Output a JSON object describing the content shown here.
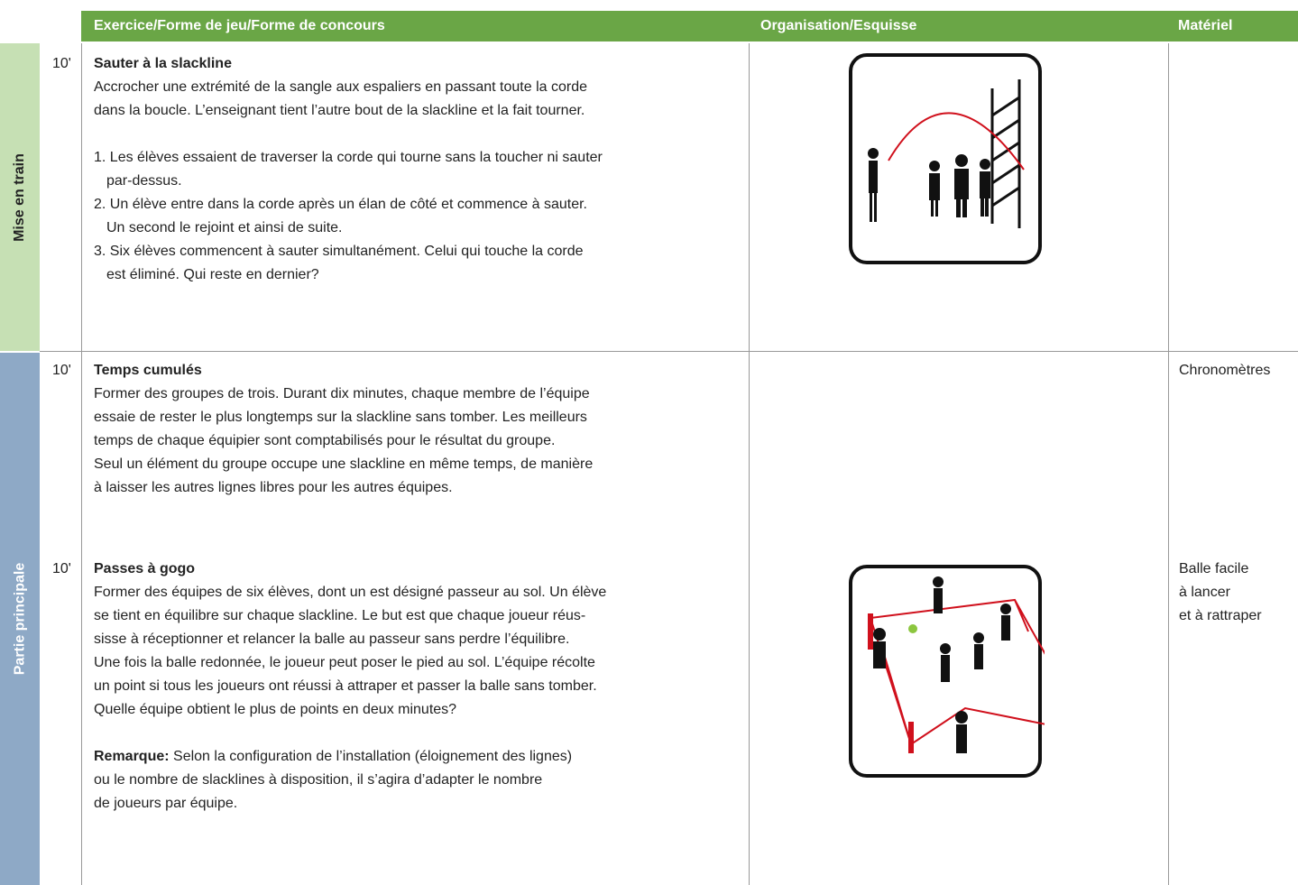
{
  "header": {
    "exercise": "Exercice/Forme de jeu/Forme de concours",
    "organisation": "Organisation/Esquisse",
    "material": "Matériel"
  },
  "sections": [
    {
      "label": "Mise en train",
      "rows": [
        {
          "time": "10'",
          "title": "Sauter à la slackline",
          "lines": [
            "Accrocher une extrémité de la sangle aux espaliers en passant toute la corde",
            "dans la boucle. L’enseignant tient l’autre bout de la slackline et la fait tourner."
          ],
          "list": [
            [
              "1. Les élèves essaient de traverser la corde qui tourne sans la toucher ni sauter",
              "par-dessus."
            ],
            [
              "2. Un élève entre dans la corde après un élan de côté et commence à sauter.",
              "Un second le rejoint et ainsi de suite."
            ],
            [
              "3. Six élèves commencent à sauter simultanément. Celui qui touche la corde",
              "est éliminé. Qui reste en dernier?"
            ]
          ]
        }
      ]
    },
    {
      "label": "Partie principale",
      "rows": [
        {
          "time": "10'",
          "title": "Temps cumulés",
          "lines": [
            "Former des groupes de trois. Durant dix minutes, chaque membre de l’équipe",
            "essaie de rester le plus longtemps sur la slackline sans tomber. Les meilleurs",
            "temps de chaque équipier sont comptabilisés pour le résultat du groupe.",
            "Seul un élément du groupe occupe une slackline en même temps, de manière",
            "à laisser les autres lignes libres pour les autres équipes."
          ],
          "material": [
            "Chronomètres"
          ]
        },
        {
          "time": "10'",
          "title": "Passes à gogo",
          "lines": [
            "Former des équipes de six élèves, dont un est désigné passeur au sol. Un élève",
            "se tient en équilibre sur chaque slackline. Le but est que chaque joueur réus-",
            "sisse à réceptionner et relancer la balle au passeur sans perdre l’équilibre.",
            "Une fois la balle redonnée, le joueur peut poser le pied au sol. L’équipe récolte",
            "un point si tous les joueurs ont réussi à attraper et passer la balle sans tomber.",
            "Quelle équipe obtient le plus de points en deux minutes?"
          ],
          "note": {
            "label": "Remarque:",
            "lines": [
              " Selon la configuration de l’installation (éloignement des lignes)",
              "ou le nombre de slacklines à disposition, il s’agira d’adapter le nombre",
              "de joueurs par équipe."
            ]
          },
          "material": [
            "Balle facile",
            "à lancer",
            "et à rattraper"
          ]
        }
      ]
    }
  ]
}
